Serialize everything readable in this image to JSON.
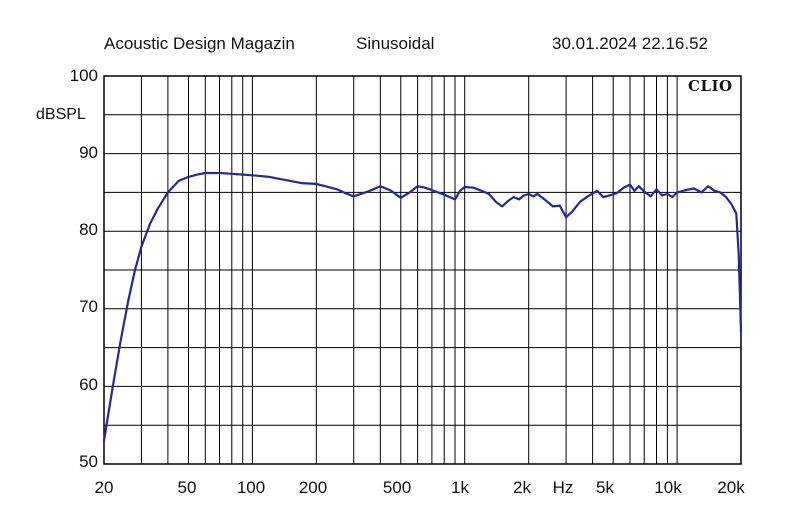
{
  "header": {
    "left": "Acoustic Design Magazin",
    "middle": "Sinusoidal",
    "right": "30.01.2024 22.16.52"
  },
  "brand": "CLIO",
  "chart_data": {
    "type": "line",
    "ylabel": "dBSPL",
    "xlabel": "Hz",
    "xscale": "log",
    "xlim": [
      20,
      20000
    ],
    "ylim": [
      50,
      100
    ],
    "grid": true,
    "x_ticks": [
      "20",
      "50",
      "100",
      "200",
      "500",
      "1k",
      "2k",
      "5k",
      "10k",
      "20k"
    ],
    "y_ticks": [
      "100",
      "90",
      "80",
      "70",
      "60",
      "50"
    ],
    "line_color": "#1f2a9c",
    "series": [
      {
        "x": [
          20,
          22,
          24,
          26,
          28,
          30,
          33,
          36,
          40,
          45,
          50,
          55,
          60,
          70,
          80,
          90,
          100,
          120,
          150,
          170,
          200,
          220,
          250,
          280,
          300,
          350,
          400,
          450,
          500,
          550,
          600,
          650,
          700,
          800,
          900,
          950,
          1000,
          1100,
          1200,
          1300,
          1400,
          1500,
          1600,
          1700,
          1800,
          1900,
          2000,
          2100,
          2200,
          2400,
          2600,
          2800,
          3000,
          3200,
          3500,
          3800,
          4200,
          4500,
          4800,
          5200,
          5600,
          6000,
          6300,
          6600,
          7000,
          7500,
          8000,
          8500,
          9000,
          9500,
          10000,
          11000,
          12000,
          13000,
          14000,
          15000,
          16000,
          17000,
          18000,
          19000,
          19500,
          20000
        ],
        "y": [
          53,
          60,
          66,
          71,
          75,
          78,
          81,
          83,
          85,
          86.5,
          87,
          87.3,
          87.5,
          87.5,
          87.4,
          87.3,
          87.2,
          87,
          86.5,
          86.2,
          86.1,
          85.8,
          85.4,
          84.8,
          84.5,
          85.1,
          85.8,
          85.2,
          84.3,
          85,
          85.8,
          85.6,
          85.3,
          84.7,
          84.1,
          85.2,
          85.7,
          85.6,
          85.2,
          84.8,
          83.8,
          83.2,
          83.9,
          84.4,
          84.1,
          84.6,
          84.8,
          84.5,
          84.8,
          84,
          83.2,
          83.3,
          81.8,
          82.5,
          83.8,
          84.5,
          85.2,
          84.4,
          84.6,
          84.9,
          85.6,
          86,
          85.2,
          85.8,
          85.1,
          84.5,
          85.4,
          84.6,
          84.8,
          84.4,
          85,
          85.3,
          85.5,
          85,
          85.8,
          85.2,
          85,
          84.4,
          83.5,
          82.3,
          77,
          67
        ]
      }
    ]
  }
}
